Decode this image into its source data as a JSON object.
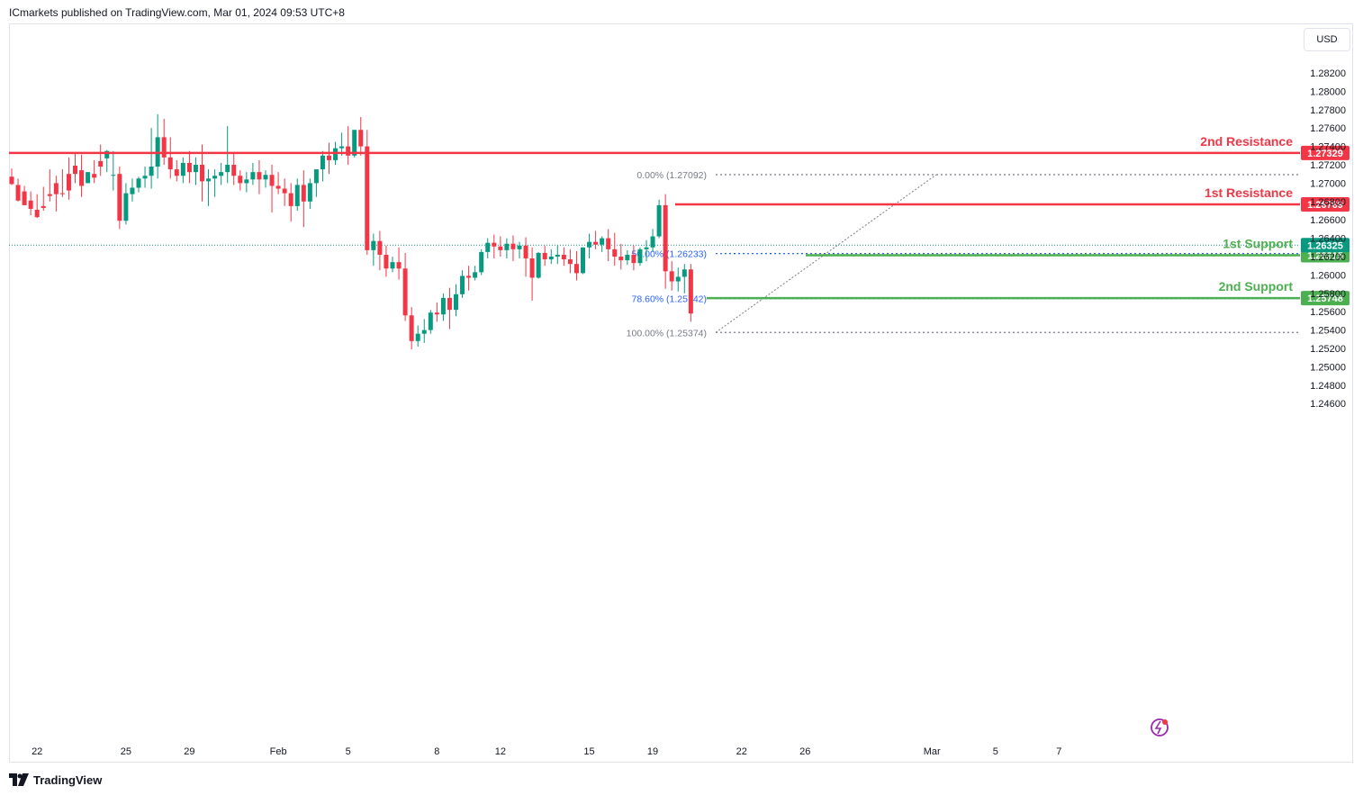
{
  "header": {
    "publisher_line": "ICmarkets published on TradingView.com, Mar 01, 2024 09:53 UTC+8"
  },
  "currency_button": "USD",
  "footer": {
    "logo_text": "TradingView"
  },
  "colors": {
    "up": "#089981",
    "down": "#f23645",
    "resistance": "#f23645",
    "support": "#4caf50",
    "fib": "#2962ff"
  },
  "chart_data": {
    "type": "candlestick",
    "y_ticks": [
      "1.28200",
      "1.28000",
      "1.27800",
      "1.27600",
      "1.27400",
      "1.27200",
      "1.27000",
      "1.26800",
      "1.26600",
      "1.26400",
      "1.26200",
      "1.26000",
      "1.25800",
      "1.25600",
      "1.25400",
      "1.25200",
      "1.25000",
      "1.24800",
      "1.24600"
    ],
    "x_ticks": [
      {
        "label": "22",
        "i": 4
      },
      {
        "label": "25",
        "i": 18
      },
      {
        "label": "29",
        "i": 28
      },
      {
        "label": "Feb",
        "i": 42
      },
      {
        "label": "5",
        "i": 53
      },
      {
        "label": "8",
        "i": 67
      },
      {
        "label": "12",
        "i": 77
      },
      {
        "label": "15",
        "i": 91
      },
      {
        "label": "19",
        "i": 101
      },
      {
        "label": "22",
        "i": 115
      },
      {
        "label": "26",
        "i": 125
      },
      {
        "label": "Mar",
        "i": 145
      },
      {
        "label": "5",
        "i": 155
      },
      {
        "label": "7",
        "i": 165
      }
    ],
    "levels": [
      {
        "name": "2nd Resistance",
        "label": "2nd Resistance",
        "value": 1.27329,
        "price_tag": "1.27329",
        "kind": "resistance"
      },
      {
        "name": "1st Resistance",
        "label": "1st Resistance",
        "value": 1.26769,
        "price_tag": "1.26769",
        "kind": "resistance"
      },
      {
        "name": "1st Support",
        "label": "1st Support",
        "value": 1.26215,
        "price_tag": "1.26215",
        "kind": "support"
      },
      {
        "name": "2nd Support",
        "label": "2nd Support",
        "value": 1.25748,
        "price_tag": "1.25748",
        "kind": "support"
      }
    ],
    "current_price": {
      "value": 1.26325,
      "label": "1.26325"
    },
    "fibonacci": [
      {
        "label": "0.00% (1.27092)",
        "value": 1.27092
      },
      {
        "label": "50.00% (1.26233)",
        "value": 1.26233
      },
      {
        "label": "78.60% (1.25742)",
        "value": 1.25742
      },
      {
        "label": "100.00% (1.25374)",
        "value": 1.25374
      }
    ],
    "candles": [
      [
        1.2707,
        1.2716,
        1.2699,
        1.2698
      ],
      [
        1.2698,
        1.2705,
        1.2681,
        1.268
      ],
      [
        1.2691,
        1.2697,
        1.2676,
        1.2681
      ],
      [
        1.2681,
        1.2691,
        1.2672,
        1.2665
      ],
      [
        1.2671,
        1.2688,
        1.2663,
        1.2662
      ],
      [
        1.2675,
        1.2696,
        1.2673,
        1.267
      ],
      [
        1.2688,
        1.2715,
        1.2686,
        1.268
      ],
      [
        1.27,
        1.2708,
        1.2688,
        1.2669
      ],
      [
        1.2689,
        1.2715,
        1.2688,
        1.2685
      ],
      [
        1.271,
        1.2728,
        1.2692,
        1.2682
      ],
      [
        1.2719,
        1.2732,
        1.271,
        1.27
      ],
      [
        1.2714,
        1.2731,
        1.2697,
        1.2685
      ],
      [
        1.27,
        1.2707,
        1.2712,
        1.2702
      ],
      [
        1.271,
        1.2725,
        1.2706,
        1.27
      ],
      [
        1.2724,
        1.2742,
        1.2718,
        1.2708
      ],
      [
        1.2727,
        1.2736,
        1.2735,
        1.2712
      ],
      [
        1.2709,
        1.2735,
        1.2709,
        1.2692
      ],
      [
        1.271,
        1.2718,
        1.2659,
        1.265
      ],
      [
        1.2659,
        1.27,
        1.2689,
        1.2655
      ],
      [
        1.2688,
        1.2705,
        1.2695,
        1.268
      ],
      [
        1.2695,
        1.2707,
        1.2705,
        1.269
      ],
      [
        1.2705,
        1.2718,
        1.2708,
        1.2695
      ],
      [
        1.2708,
        1.276,
        1.2718,
        1.2694
      ],
      [
        1.2718,
        1.2775,
        1.275,
        1.2705
      ],
      [
        1.275,
        1.277,
        1.2728,
        1.272
      ],
      [
        1.2728,
        1.275,
        1.2715,
        1.2705
      ],
      [
        1.2715,
        1.2725,
        1.2708,
        1.2702
      ],
      [
        1.2708,
        1.2728,
        1.2722,
        1.27
      ],
      [
        1.2722,
        1.2735,
        1.2712,
        1.27
      ],
      [
        1.2712,
        1.2728,
        1.272,
        1.2698
      ],
      [
        1.272,
        1.2742,
        1.2702,
        1.268
      ],
      [
        1.2702,
        1.2715,
        1.2705,
        1.2675
      ],
      [
        1.2705,
        1.2715,
        1.2708,
        1.2685
      ],
      [
        1.2708,
        1.2722,
        1.2712,
        1.2698
      ],
      [
        1.2712,
        1.2762,
        1.272,
        1.27
      ],
      [
        1.272,
        1.2732,
        1.2708,
        1.2698
      ],
      [
        1.2708,
        1.2714,
        1.27,
        1.2692
      ],
      [
        1.27,
        1.2712,
        1.2704,
        1.269
      ],
      [
        1.2704,
        1.2722,
        1.2712,
        1.2698
      ],
      [
        1.2712,
        1.2725,
        1.2704,
        1.2688
      ],
      [
        1.2704,
        1.2714,
        1.2709,
        1.2695
      ],
      [
        1.2709,
        1.272,
        1.2697,
        1.2668
      ],
      [
        1.2697,
        1.2712,
        1.2694,
        1.2688
      ],
      [
        1.2694,
        1.2705,
        1.2689,
        1.2675
      ],
      [
        1.2689,
        1.27,
        1.2675,
        1.2658
      ],
      [
        1.2675,
        1.2705,
        1.2698,
        1.267
      ],
      [
        1.2698,
        1.2714,
        1.268,
        1.2652
      ],
      [
        1.268,
        1.2705,
        1.27,
        1.2672
      ],
      [
        1.27,
        1.2715,
        1.2715,
        1.2685
      ],
      [
        1.2715,
        1.2735,
        1.273,
        1.2702
      ],
      [
        1.273,
        1.2744,
        1.2725,
        1.271
      ],
      [
        1.2725,
        1.2745,
        1.2738,
        1.272
      ],
      [
        1.2738,
        1.2755,
        1.274,
        1.273
      ],
      [
        1.274,
        1.2762,
        1.273,
        1.272
      ],
      [
        1.273,
        1.2752,
        1.2758,
        1.2728
      ],
      [
        1.2758,
        1.2772,
        1.274,
        1.273
      ],
      [
        1.274,
        1.2758,
        1.2627,
        1.2622
      ],
      [
        1.2627,
        1.2645,
        1.2637,
        1.261
      ],
      [
        1.2637,
        1.2648,
        1.2622,
        1.2605
      ],
      [
        1.2622,
        1.2632,
        1.2607,
        1.2598
      ],
      [
        1.2607,
        1.262,
        1.2614,
        1.2603
      ],
      [
        1.2614,
        1.263,
        1.2607,
        1.2595
      ],
      [
        1.2607,
        1.2624,
        1.2556,
        1.255
      ],
      [
        1.2556,
        1.2565,
        1.2528,
        1.2519
      ],
      [
        1.2528,
        1.2545,
        1.2536,
        1.2522
      ],
      [
        1.2536,
        1.2552,
        1.254,
        1.2526
      ],
      [
        1.254,
        1.2562,
        1.2559,
        1.2536
      ],
      [
        1.2559,
        1.257,
        1.2557,
        1.2549
      ],
      [
        1.2557,
        1.258,
        1.2575,
        1.255
      ],
      [
        1.2575,
        1.2586,
        1.2562,
        1.2541
      ],
      [
        1.2562,
        1.259,
        1.2579,
        1.2555
      ],
      [
        1.2579,
        1.2605,
        1.2599,
        1.2575
      ],
      [
        1.2599,
        1.261,
        1.2597,
        1.2583
      ],
      [
        1.2597,
        1.261,
        1.2603,
        1.2594
      ],
      [
        1.2603,
        1.2628,
        1.2625,
        1.26
      ],
      [
        1.2625,
        1.264,
        1.2635,
        1.2618
      ],
      [
        1.2635,
        1.2644,
        1.2631,
        1.2618
      ],
      [
        1.2631,
        1.2642,
        1.2627,
        1.262
      ],
      [
        1.2627,
        1.264,
        1.2634,
        1.2618
      ],
      [
        1.2634,
        1.2643,
        1.2628,
        1.2615
      ],
      [
        1.2628,
        1.2636,
        1.2632,
        1.2618
      ],
      [
        1.2632,
        1.2641,
        1.2618,
        1.2598
      ],
      [
        1.2618,
        1.263,
        1.2597,
        1.2572
      ],
      [
        1.2597,
        1.2625,
        1.2624,
        1.2596
      ],
      [
        1.2624,
        1.2632,
        1.2617,
        1.261
      ],
      [
        1.2617,
        1.2628,
        1.262,
        1.2612
      ],
      [
        1.262,
        1.2632,
        1.2622,
        1.2612
      ],
      [
        1.2622,
        1.263,
        1.2617,
        1.261
      ],
      [
        1.2617,
        1.2628,
        1.2612,
        1.2602
      ],
      [
        1.2612,
        1.2626,
        1.2602,
        1.2594
      ],
      [
        1.2602,
        1.2618,
        1.263,
        1.2601
      ],
      [
        1.263,
        1.2645,
        1.2636,
        1.2618
      ],
      [
        1.2636,
        1.2648,
        1.2633,
        1.2628
      ],
      [
        1.2633,
        1.2642,
        1.264,
        1.2625
      ],
      [
        1.264,
        1.265,
        1.2628,
        1.2615
      ],
      [
        1.2628,
        1.2646,
        1.262,
        1.261
      ],
      [
        1.262,
        1.2634,
        1.2616,
        1.2606
      ],
      [
        1.2616,
        1.2627,
        1.2622,
        1.2611
      ],
      [
        1.2622,
        1.2632,
        1.2613,
        1.2605
      ],
      [
        1.2613,
        1.263,
        1.2628,
        1.261
      ],
      [
        1.2628,
        1.2638,
        1.263,
        1.2615
      ],
      [
        1.263,
        1.265,
        1.2642,
        1.2625
      ],
      [
        1.2642,
        1.2682,
        1.2676,
        1.264
      ],
      [
        1.2676,
        1.2688,
        1.2604,
        1.2585
      ],
      [
        1.2604,
        1.2615,
        1.2593,
        1.2583
      ],
      [
        1.2593,
        1.2608,
        1.2598,
        1.2582
      ],
      [
        1.2598,
        1.2612,
        1.2606,
        1.258
      ],
      [
        1.2606,
        1.2612,
        1.2558,
        1.2549
      ]
    ]
  }
}
